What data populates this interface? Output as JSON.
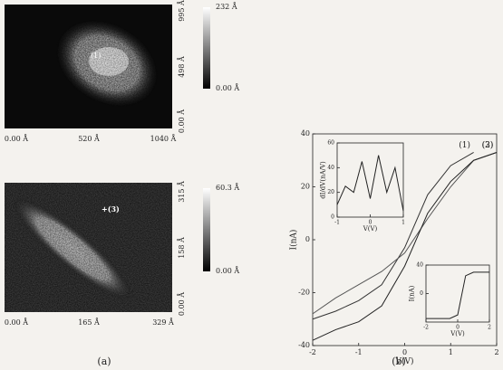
{
  "panel_a": {
    "top": {
      "x_ticks": [
        "0.00 Å",
        "520 Å",
        "1040 Å"
      ],
      "y_ticks": [
        "995 Å",
        "498 Å",
        "0.00 Å"
      ],
      "colorbar": [
        "232 Å",
        "0.00 Å"
      ],
      "marker": "(1)"
    },
    "bottom": {
      "x_ticks": [
        "0.00 Å",
        "165 Å",
        "329 Å"
      ],
      "y_ticks": [
        "315 Å",
        "158 Å",
        "0.00 Å"
      ],
      "colorbar": [
        "60.3 Å",
        "0.00 Å"
      ],
      "marker": "+(3)"
    },
    "caption": "(a)"
  },
  "chart_data": {
    "type": "line",
    "xlabel": "V(V)",
    "ylabel": "I(nA)",
    "x": [
      -2,
      -1.5,
      -1,
      -0.5,
      0,
      0.5,
      1,
      1.5,
      2
    ],
    "xlim": [
      -2,
      2
    ],
    "ylim": [
      -40,
      40
    ],
    "xticks": [
      -2,
      -1,
      0,
      1,
      2
    ],
    "yticks": [
      -40,
      -20,
      0,
      20,
      40
    ],
    "series": [
      {
        "name": "(1)",
        "color": "#333333",
        "values": [
          -30,
          -27,
          -23,
          -17,
          -3,
          17,
          28,
          33,
          null
        ]
      },
      {
        "name": "(2)",
        "color": "#555555",
        "values": [
          -28,
          -22,
          -17,
          -12,
          -5,
          8,
          20,
          30,
          33
        ]
      },
      {
        "name": "(3)",
        "color": "#222222",
        "values": [
          -38,
          -34,
          -31,
          -25,
          -10,
          10,
          22,
          30,
          33
        ]
      }
    ],
    "insets": [
      {
        "xlabel": "V(V)",
        "ylabel": "dI/dV(nA/V)",
        "x": [
          -1,
          -0.75,
          -0.5,
          -0.25,
          0,
          0.25,
          0.5,
          0.75,
          1
        ],
        "values": [
          10,
          25,
          20,
          45,
          15,
          50,
          20,
          40,
          5
        ],
        "xlim": [
          -1,
          1
        ],
        "ylim": [
          0,
          60
        ],
        "xticks": [
          -1,
          0,
          1
        ],
        "yticks": [
          0,
          20,
          40,
          60
        ]
      },
      {
        "xlabel": "V(V)",
        "ylabel": "I(nA)",
        "x": [
          -2,
          -1,
          -0.5,
          0,
          0.5,
          1,
          2
        ],
        "values": [
          -35,
          -35,
          -35,
          -30,
          25,
          30,
          30
        ],
        "xlim": [
          -2,
          2
        ],
        "ylim": [
          -40,
          40
        ],
        "xticks": [
          -2,
          0,
          2
        ],
        "yticks": [
          0,
          40
        ]
      }
    ]
  },
  "panel_b": {
    "caption": "(b)"
  }
}
